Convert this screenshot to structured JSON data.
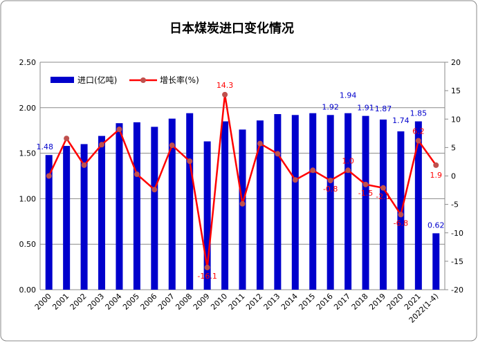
{
  "chart_data": {
    "type": "bar+line",
    "title": "日本煤炭进口变化情况",
    "categories": [
      "2000",
      "2001",
      "2002",
      "2003",
      "2004",
      "2005",
      "2006",
      "2007",
      "2008",
      "2009",
      "2010",
      "2011",
      "2012",
      "2013",
      "2014",
      "2015",
      "2016",
      "2017",
      "2018",
      "2019",
      "2020",
      "2021",
      "2022(1-4)"
    ],
    "series": [
      {
        "name": "进口(亿吨)",
        "type": "bar",
        "axis": "left",
        "color": "#0000CC",
        "values": [
          1.48,
          1.58,
          1.6,
          1.69,
          1.83,
          1.84,
          1.79,
          1.88,
          1.94,
          1.63,
          1.85,
          1.76,
          1.86,
          1.93,
          1.92,
          1.94,
          1.92,
          1.94,
          1.91,
          1.87,
          1.74,
          1.85,
          0.62
        ],
        "labels": [
          "1.48",
          "",
          "",
          "",
          "",
          "",
          "",
          "",
          "",
          "",
          "",
          "",
          "",
          "",
          "",
          "",
          "1.92",
          "1.94",
          "1.91",
          "1.87",
          "1.74",
          "1.85",
          "0.62"
        ]
      },
      {
        "name": "增长率(%)",
        "type": "line",
        "axis": "right",
        "color": "#FF0000",
        "marker_color": "#C0504D",
        "values": [
          0,
          6.6,
          1.9,
          5.5,
          8.2,
          0.3,
          -2.4,
          5.4,
          2.6,
          -16.1,
          14.3,
          -4.9,
          5.7,
          3.9,
          -0.7,
          1.0,
          -0.8,
          1.0,
          -1.5,
          -2.1,
          -6.8,
          6.2,
          1.9
        ],
        "labels": [
          "",
          "",
          "",
          "",
          "",
          "",
          "",
          "",
          "",
          "-16.1",
          "14.3",
          "",
          "",
          "",
          "",
          "",
          "-0.8",
          "1.0",
          "-1.5",
          "-2.1",
          "-6.8",
          "6.2",
          "1.9"
        ]
      }
    ],
    "ylim_left": [
      0,
      2.5
    ],
    "yticks_left": [
      "0.00",
      "0.50",
      "1.00",
      "1.50",
      "2.00",
      "2.50"
    ],
    "ylim_right": [
      -20,
      20
    ],
    "yticks_right": [
      "-20",
      "-15",
      "-10",
      "-5",
      "0",
      "5",
      "10",
      "15",
      "20"
    ],
    "grid": true,
    "legend": "top-left"
  }
}
